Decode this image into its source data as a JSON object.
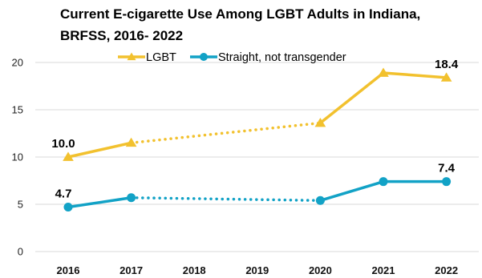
{
  "chart_data": {
    "type": "line",
    "title_lines": [
      "Current E-cigarette Use Among LGBT Adults in Indiana,",
      "BRFSS, 2016- 2022"
    ],
    "categories": [
      "2016",
      "2017",
      "2018",
      "2019",
      "2020",
      "2021",
      "2022"
    ],
    "ylim": [
      0,
      20
    ],
    "yticks": [
      0,
      5,
      10,
      15,
      20
    ],
    "grid": "horizontal",
    "legend": "top",
    "series": [
      {
        "name": "LGBT",
        "color": "#F2C12E",
        "marker": "triangle",
        "values": [
          10.0,
          11.5,
          null,
          null,
          13.6,
          18.9,
          18.4
        ],
        "data_labels": [
          {
            "index": 0,
            "text": "10.0"
          },
          {
            "index": 6,
            "text": "18.4"
          }
        ]
      },
      {
        "name": "Straight, not transgender",
        "color": "#12A2C6",
        "marker": "circle",
        "values": [
          4.7,
          5.7,
          null,
          null,
          5.4,
          7.4,
          7.4
        ],
        "data_labels": [
          {
            "index": 0,
            "text": "4.7"
          },
          {
            "index": 6,
            "text": "7.4"
          }
        ]
      }
    ],
    "gap_style": "dotted"
  }
}
